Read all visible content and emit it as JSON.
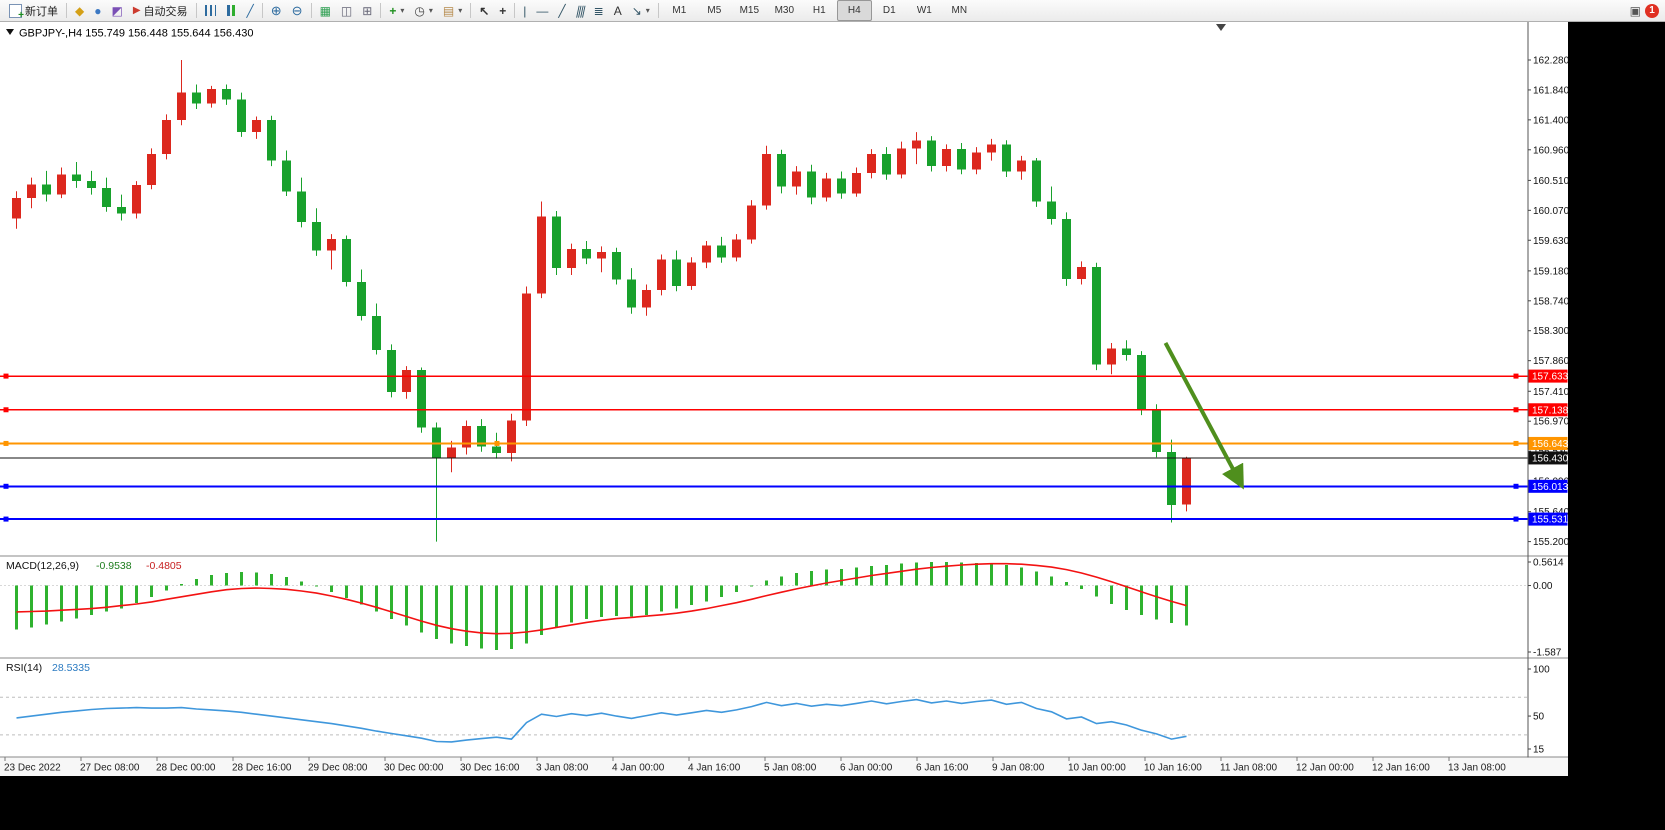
{
  "toolbar": {
    "new_order_label": "新订单",
    "auto_trading_label": "自动交易",
    "timeframes": [
      "M1",
      "M5",
      "M15",
      "M30",
      "H1",
      "H4",
      "D1",
      "W1",
      "MN"
    ],
    "active_timeframe": "H4",
    "badge_count": "1"
  },
  "icons": {
    "metaeditor": "◆",
    "terminal": "●",
    "tester": "◩",
    "autotrading": "▶",
    "line_chart": "╱",
    "zoom_in": "⊕",
    "zoom_out": "⊖",
    "tile": "▦",
    "cascade": "◫",
    "arrange": "⊞",
    "indicators": "+",
    "periods": "◷",
    "templates": "▤",
    "cursor": "↖",
    "crosshair": "+",
    "vline": "|",
    "hline": "—",
    "trendline": "╱",
    "channel": "∥∥",
    "fibo": "≣",
    "text_tool": "A",
    "arrows": "↘",
    "dropdown": "▾",
    "alert": "▣"
  },
  "chart": {
    "title": "GBPJPY-,H4",
    "ohlc_text": "155.749 156.448 155.644 156.430",
    "price_axis": [
      "162.280",
      "161.840",
      "161.400",
      "160.960",
      "160.510",
      "160.070",
      "159.630",
      "159.180",
      "158.740",
      "158.300",
      "157.860",
      "157.410",
      "156.970",
      "156.530",
      "156.090",
      "155.640",
      "155.200"
    ],
    "lines": [
      {
        "label": "157.633",
        "price": 157.633,
        "color": "#ff0000",
        "weight": 1.5
      },
      {
        "label": "157.138",
        "price": 157.138,
        "color": "#ff0000",
        "weight": 1.5
      },
      {
        "label": "156.643",
        "price": 156.643,
        "color": "#ff9500",
        "weight": 2
      },
      {
        "label": "156.430",
        "price": 156.43,
        "color": "#101010",
        "weight": 1,
        "bid": true
      },
      {
        "label": "156.013",
        "price": 156.013,
        "color": "#0000ff",
        "weight": 2
      },
      {
        "label": "155.531",
        "price": 155.531,
        "color": "#0000ff",
        "weight": 2
      }
    ],
    "time_axis": [
      "23 Dec 2022",
      "27 Dec 08:00",
      "28 Dec 00:00",
      "28 Dec 16:00",
      "29 Dec 08:00",
      "30 Dec 00:00",
      "30 Dec 16:00",
      "3 Jan 08:00",
      "4 Jan 00:00",
      "4 Jan 16:00",
      "5 Jan 08:00",
      "6 Jan 00:00",
      "6 Jan 16:00",
      "9 Jan 08:00",
      "10 Jan 00:00",
      "10 Jan 16:00",
      "11 Jan 08:00",
      "12 Jan 00:00",
      "12 Jan 16:00",
      "13 Jan 08:00"
    ]
  },
  "macd": {
    "label": "MACD(12,26,9)",
    "value_main": "-0.9538",
    "value_signal": "-0.4805",
    "axis": [
      "0.5614",
      "0.00",
      "-1.587"
    ]
  },
  "rsi": {
    "label": "RSI(14)",
    "value": "28.5335",
    "axis": [
      "100",
      "50",
      "15"
    ],
    "levels": [
      70,
      30
    ]
  },
  "colors": {
    "up": "#dc281e",
    "down": "#18a12c",
    "macd_hist": "#2fb22f",
    "macd_signal": "#f31212",
    "rsi_line": "#3f97dc",
    "arrow": "#4f8f1d",
    "orange": "#ff9500",
    "black_line": "#101010"
  },
  "chart_data": {
    "type": "candlestick",
    "symbol_timeframe": "GBPJPY-,H4",
    "candles_ohlc": [
      [
        159.95,
        160.35,
        159.8,
        160.25
      ],
      [
        160.25,
        160.55,
        160.1,
        160.45
      ],
      [
        160.45,
        160.65,
        160.2,
        160.3
      ],
      [
        160.3,
        160.7,
        160.25,
        160.6
      ],
      [
        160.6,
        160.78,
        160.4,
        160.5
      ],
      [
        160.5,
        160.65,
        160.3,
        160.4
      ],
      [
        160.4,
        160.55,
        160.05,
        160.12
      ],
      [
        160.12,
        160.3,
        159.92,
        160.02
      ],
      [
        160.02,
        160.5,
        159.95,
        160.44
      ],
      [
        160.44,
        160.98,
        160.38,
        160.9
      ],
      [
        160.9,
        161.48,
        160.82,
        161.4
      ],
      [
        161.4,
        162.28,
        161.32,
        161.8
      ],
      [
        161.8,
        161.92,
        161.56,
        161.64
      ],
      [
        161.64,
        161.9,
        161.58,
        161.85
      ],
      [
        161.85,
        161.92,
        161.62,
        161.7
      ],
      [
        161.7,
        161.8,
        161.15,
        161.22
      ],
      [
        161.22,
        161.45,
        161.12,
        161.4
      ],
      [
        161.4,
        161.46,
        160.72,
        160.8
      ],
      [
        160.8,
        160.95,
        160.28,
        160.35
      ],
      [
        160.35,
        160.55,
        159.82,
        159.9
      ],
      [
        159.9,
        160.1,
        159.4,
        159.48
      ],
      [
        159.48,
        159.72,
        159.2,
        159.65
      ],
      [
        159.65,
        159.7,
        158.95,
        159.02
      ],
      [
        159.02,
        159.2,
        158.45,
        158.52
      ],
      [
        158.52,
        158.7,
        157.95,
        158.02
      ],
      [
        158.02,
        158.1,
        157.32,
        157.4
      ],
      [
        157.4,
        157.78,
        157.3,
        157.72
      ],
      [
        157.72,
        157.76,
        156.8,
        156.88
      ],
      [
        156.88,
        156.95,
        155.2,
        156.42
      ],
      [
        156.42,
        156.68,
        156.22,
        156.58
      ],
      [
        156.58,
        156.98,
        156.48,
        156.9
      ],
      [
        156.9,
        157.0,
        156.52,
        156.6
      ],
      [
        156.6,
        156.8,
        156.42,
        156.5
      ],
      [
        156.5,
        157.08,
        156.38,
        156.98
      ],
      [
        156.98,
        158.95,
        156.9,
        158.85
      ],
      [
        158.85,
        160.2,
        158.78,
        159.98
      ],
      [
        159.98,
        160.06,
        159.12,
        159.22
      ],
      [
        159.22,
        159.58,
        159.12,
        159.5
      ],
      [
        159.5,
        159.62,
        159.28,
        159.36
      ],
      [
        159.36,
        159.54,
        159.16,
        159.46
      ],
      [
        159.46,
        159.52,
        158.98,
        159.05
      ],
      [
        159.05,
        159.22,
        158.55,
        158.64
      ],
      [
        158.64,
        158.98,
        158.52,
        158.9
      ],
      [
        158.9,
        159.42,
        158.82,
        159.35
      ],
      [
        159.35,
        159.48,
        158.88,
        158.96
      ],
      [
        158.96,
        159.38,
        158.9,
        159.3
      ],
      [
        159.3,
        159.62,
        159.22,
        159.55
      ],
      [
        159.55,
        159.68,
        159.3,
        159.38
      ],
      [
        159.38,
        159.72,
        159.32,
        159.64
      ],
      [
        159.64,
        160.22,
        159.58,
        160.14
      ],
      [
        160.14,
        161.02,
        160.08,
        160.9
      ],
      [
        160.9,
        160.96,
        160.32,
        160.42
      ],
      [
        160.42,
        160.72,
        160.3,
        160.64
      ],
      [
        160.64,
        160.74,
        160.16,
        160.26
      ],
      [
        160.26,
        160.62,
        160.2,
        160.54
      ],
      [
        160.54,
        160.64,
        160.24,
        160.32
      ],
      [
        160.32,
        160.7,
        160.27,
        160.62
      ],
      [
        160.62,
        160.97,
        160.54,
        160.9
      ],
      [
        160.9,
        161.0,
        160.52,
        160.6
      ],
      [
        160.6,
        161.08,
        160.54,
        160.98
      ],
      [
        160.98,
        161.22,
        160.75,
        161.1
      ],
      [
        161.1,
        161.16,
        160.64,
        160.72
      ],
      [
        160.72,
        161.04,
        160.64,
        160.97
      ],
      [
        160.97,
        161.06,
        160.6,
        160.67
      ],
      [
        160.67,
        161.0,
        160.6,
        160.92
      ],
      [
        160.92,
        161.12,
        160.8,
        161.04
      ],
      [
        161.04,
        161.1,
        160.56,
        160.64
      ],
      [
        160.64,
        160.87,
        160.52,
        160.8
      ],
      [
        160.8,
        160.84,
        160.12,
        160.2
      ],
      [
        160.2,
        160.42,
        159.86,
        159.94
      ],
      [
        159.94,
        160.04,
        158.96,
        159.06
      ],
      [
        159.06,
        159.32,
        158.98,
        159.24
      ],
      [
        159.24,
        159.3,
        157.72,
        157.8
      ],
      [
        157.8,
        158.12,
        157.66,
        158.04
      ],
      [
        158.04,
        158.16,
        157.86,
        157.94
      ],
      [
        157.94,
        158.0,
        157.06,
        157.14
      ],
      [
        157.14,
        157.22,
        156.44,
        156.52
      ],
      [
        156.52,
        156.7,
        155.48,
        155.74
      ],
      [
        155.749,
        156.448,
        155.644,
        156.43
      ]
    ],
    "macd_hist": [
      -1.05,
      -1.0,
      -0.93,
      -0.86,
      -0.79,
      -0.7,
      -0.62,
      -0.55,
      -0.42,
      -0.28,
      -0.12,
      0.04,
      0.16,
      0.25,
      0.3,
      0.32,
      0.31,
      0.27,
      0.2,
      0.1,
      -0.02,
      -0.15,
      -0.3,
      -0.45,
      -0.62,
      -0.8,
      -0.96,
      -1.12,
      -1.28,
      -1.38,
      -1.44,
      -1.5,
      -1.54,
      -1.52,
      -1.38,
      -1.18,
      -1.0,
      -0.88,
      -0.8,
      -0.75,
      -0.73,
      -0.74,
      -0.7,
      -0.62,
      -0.55,
      -0.47,
      -0.38,
      -0.28,
      -0.16,
      -0.02,
      0.12,
      0.22,
      0.3,
      0.35,
      0.38,
      0.4,
      0.43,
      0.47,
      0.49,
      0.52,
      0.55,
      0.56,
      0.56,
      0.55,
      0.54,
      0.53,
      0.49,
      0.43,
      0.34,
      0.22,
      0.08,
      -0.08,
      -0.26,
      -0.44,
      -0.58,
      -0.7,
      -0.81,
      -0.9,
      -0.9538
    ],
    "macd_signal": [
      -0.63,
      -0.62,
      -0.61,
      -0.59,
      -0.57,
      -0.55,
      -0.52,
      -0.48,
      -0.44,
      -0.39,
      -0.33,
      -0.27,
      -0.21,
      -0.15,
      -0.1,
      -0.07,
      -0.06,
      -0.07,
      -0.09,
      -0.13,
      -0.18,
      -0.25,
      -0.33,
      -0.42,
      -0.52,
      -0.63,
      -0.74,
      -0.85,
      -0.95,
      -1.03,
      -1.09,
      -1.13,
      -1.15,
      -1.14,
      -1.11,
      -1.06,
      -1.0,
      -0.94,
      -0.88,
      -0.83,
      -0.79,
      -0.76,
      -0.73,
      -0.7,
      -0.66,
      -0.61,
      -0.55,
      -0.48,
      -0.41,
      -0.33,
      -0.24,
      -0.16,
      -0.08,
      -0.01,
      0.06,
      0.12,
      0.18,
      0.24,
      0.29,
      0.34,
      0.39,
      0.43,
      0.46,
      0.49,
      0.51,
      0.52,
      0.52,
      0.51,
      0.48,
      0.44,
      0.38,
      0.3,
      0.2,
      0.09,
      -0.03,
      -0.15,
      -0.27,
      -0.38,
      -0.4805
    ],
    "rsi": [
      48,
      50,
      52,
      54,
      55.5,
      57,
      58,
      58.5,
      59,
      58.5,
      58.5,
      59,
      57.5,
      56.5,
      55.5,
      54,
      52,
      50,
      48,
      46,
      44,
      42,
      39.5,
      37,
      34,
      31.5,
      29,
      26.5,
      23,
      22.5,
      24.5,
      26,
      27.5,
      25.5,
      43,
      52,
      49.5,
      52.5,
      50.5,
      53,
      50,
      47.5,
      50.5,
      53.5,
      51,
      53.5,
      56,
      54,
      56.5,
      60,
      64.5,
      61,
      63.5,
      60.5,
      62.5,
      61,
      63.5,
      66,
      63,
      65.5,
      67.5,
      64,
      66,
      63.5,
      65.5,
      67,
      62.5,
      64.5,
      58,
      54.5,
      47,
      49,
      42,
      44,
      40.5,
      35,
      31,
      25.5,
      28.5335
    ],
    "arrow_annotation": {
      "from": {
        "bar": 76.9,
        "price": 158.12
      },
      "to": {
        "bar": 81.9,
        "price": 156.06
      }
    }
  }
}
